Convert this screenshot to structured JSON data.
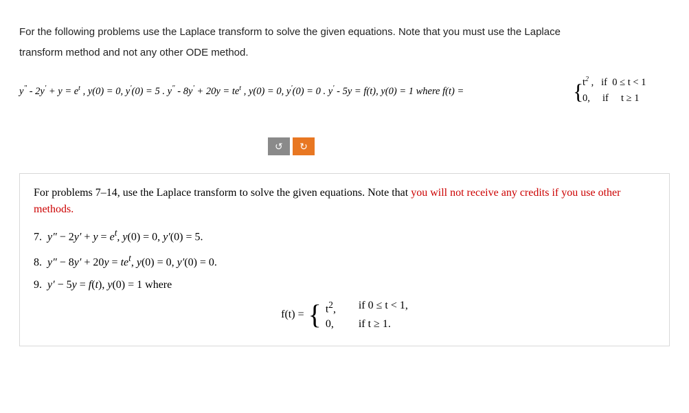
{
  "intro": {
    "line1": "For the following problems use the Laplace transform to solve the given equations. Note that you must use the Laplace",
    "line2": "transform method and not any other ODE method."
  },
  "topEq": {
    "main_html": "<span class='mi'>y</span><span class='quote'>\"</span> - 2<span class='mi'>y</span><span class='quote'>'</span> + <span class='mi'>y</span> = <span class='mi'>e</span><span class='sup'>t</span> , <span class='mi'>y</span>(0) = 0, <span class='mi'>y</span><span class='quote'>'</span>(0) = 5 . <span class='mi'>y</span><span class='quote'>\"</span> - 8<span class='mi'>y</span><span class='quote'>'</span> + 20<span class='mi'>y</span> = <span class='mi'>te</span><span class='sup'>t</span> , <span class='mi'>y</span>(0) = 0, <span class='mi'>y</span><span class='quote'>'</span>(0) = 0 . <span class='mi'>y</span><span class='quote'>'</span> - 5<span class='mi'>y</span> = <span class='mi'>f</span>(<span class='mi'>t</span>), <span class='mi'>y</span>(0) = 1 where <span class='mi'>f</span>(<span class='mi'>t</span>) = ",
    "case1_html": "<span class='mi'>t</span><span class='sup'>2</span> ,&nbsp;&nbsp;&nbsp;<span class='mi'>if</span>&nbsp;&nbsp;0 ≤ <span class='mi'>t</span> &lt; 1",
    "case2_html": "0,&nbsp;&nbsp;&nbsp;&nbsp;&nbsp;<span class='mi'>if</span>&nbsp;&nbsp;&nbsp;&nbsp;&nbsp;<span class='mi'>t</span> ≥ 1"
  },
  "buttons": {
    "undo": "↻",
    "redo": "↻"
  },
  "card": {
    "intro_pre": "For problems 7–14, use the Laplace transform to solve the given equations.  Note that ",
    "intro_red": "you will not receive any credits if you use other methods.",
    "p7_html": "7.&nbsp;&nbsp;<span class='mi'>y″</span> − 2<span class='mi'>y′</span> + <span class='mi'>y</span> = <span class='mi'>e</span><sup><span class='mi'>t</span></sup>, <span class='mi'>y</span>(0) = 0, <span class='mi'>y′</span>(0) = 5.",
    "p8_html": "8.&nbsp;&nbsp;<span class='mi'>y″</span> − 8<span class='mi'>y′</span> + 20<span class='mi'>y</span> = <span class='mi'>te</span><sup><span class='mi'>t</span></sup>, <span class='mi'>y</span>(0) = 0, <span class='mi'>y′</span>(0) = 0.",
    "p9_html": "9.&nbsp;&nbsp;<span class='mi'>y′</span> − 5<span class='mi'>y</span> = <span class='mi'>f</span>(<span class='mi'>t</span>), <span class='mi'>y</span>(0) = 1 where",
    "ft_lhs_html": "<span class='mi'>f</span>(<span class='mi'>t</span>) = ",
    "case1_val_html": "<span class='mi'>t</span><sup>2</sup>,",
    "case1_cond_html": "if 0 ≤ <span class='mi'>t</span> &lt; 1,",
    "case2_val": "0,",
    "case2_cond_html": "if <span class='mi'>t</span> ≥ 1."
  },
  "colors": {
    "text": "#000000",
    "red": "#cc0000",
    "btnGray": "#8a8a8a",
    "btnOrange": "#e87722",
    "cardBorder": "#d8d8d8",
    "background": "#ffffff"
  }
}
